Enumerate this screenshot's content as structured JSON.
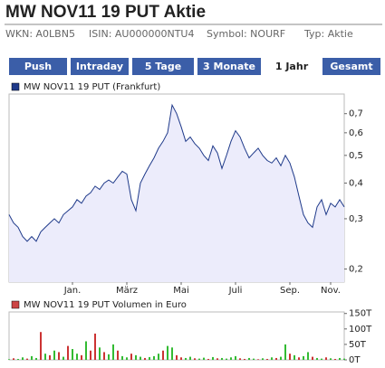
{
  "header": {
    "title": "MW NOV11 19 PUT Aktie",
    "info": [
      "WKN: A0LBN5",
      "ISIN: AU000000NTU4",
      "Symbol: NOURF",
      "Typ: Aktie"
    ]
  },
  "tabs": {
    "items": [
      "Push",
      "Intraday",
      "5 Tage",
      "3 Monate",
      "1 Jahr",
      "Gesamt"
    ],
    "selected": 4
  },
  "chart_data": [
    {
      "type": "line",
      "log_scale": true,
      "area_color": "#ececfb",
      "series": [
        {
          "name": "MW NOV11 19 PUT (Frankfurt)",
          "color": "#1f3a8a",
          "values": [
            0.31,
            0.29,
            0.28,
            0.26,
            0.25,
            0.26,
            0.25,
            0.27,
            0.28,
            0.29,
            0.3,
            0.29,
            0.31,
            0.32,
            0.33,
            0.35,
            0.34,
            0.36,
            0.37,
            0.39,
            0.38,
            0.4,
            0.41,
            0.4,
            0.42,
            0.44,
            0.43,
            0.35,
            0.32,
            0.4,
            0.43,
            0.46,
            0.49,
            0.53,
            0.56,
            0.6,
            0.75,
            0.7,
            0.63,
            0.56,
            0.58,
            0.55,
            0.53,
            0.5,
            0.48,
            0.54,
            0.51,
            0.45,
            0.5,
            0.56,
            0.61,
            0.58,
            0.53,
            0.49,
            0.51,
            0.53,
            0.5,
            0.48,
            0.47,
            0.49,
            0.46,
            0.5,
            0.47,
            0.42,
            0.36,
            0.31,
            0.29,
            0.28,
            0.33,
            0.35,
            0.31,
            0.34,
            0.33,
            0.35,
            0.33
          ]
        }
      ],
      "categories": [
        null,
        null,
        null,
        null,
        null,
        null,
        null,
        null,
        null,
        null,
        null,
        null,
        null,
        null,
        "Jan.",
        null,
        null,
        null,
        null,
        null,
        null,
        null,
        null,
        null,
        null,
        null,
        "März",
        null,
        null,
        null,
        null,
        null,
        null,
        null,
        null,
        null,
        null,
        null,
        "Mai",
        null,
        null,
        null,
        null,
        null,
        null,
        null,
        null,
        null,
        null,
        null,
        "Juli",
        null,
        null,
        null,
        null,
        null,
        null,
        null,
        null,
        null,
        null,
        null,
        "Sep.",
        null,
        null,
        null,
        null,
        null,
        null,
        null,
        null,
        "Nov.",
        null,
        null,
        null
      ],
      "ylim": [
        0.18,
        0.82
      ],
      "yticks": [
        {
          "value": 0.2,
          "label": "0,2"
        },
        {
          "value": 0.3,
          "label": "0,3"
        },
        {
          "value": 0.4,
          "label": "0,4"
        },
        {
          "value": 0.5,
          "label": "0,5"
        },
        {
          "value": 0.6,
          "label": "0,6"
        },
        {
          "value": 0.7,
          "label": "0,7"
        }
      ]
    },
    {
      "type": "bar",
      "series": [
        {
          "name": "MW NOV11 19 PUT Volumen in Euro",
          "color": "#cc4444",
          "values": [
            2000,
            5000,
            3000,
            8000,
            4000,
            12000,
            6000,
            90000,
            20000,
            15000,
            30000,
            25000,
            10000,
            45000,
            35000,
            20000,
            15000,
            60000,
            30000,
            85000,
            40000,
            25000,
            18000,
            50000,
            30000,
            12000,
            8000,
            20000,
            15000,
            10000,
            6000,
            9000,
            12000,
            20000,
            30000,
            45000,
            40000,
            15000,
            8000,
            6000,
            10000,
            5000,
            4000,
            7000,
            3000,
            9000,
            5000,
            6000,
            4000,
            8000,
            12000,
            5000,
            3000,
            6000,
            4000,
            2000,
            5000,
            3000,
            8000,
            6000,
            10000,
            50000,
            20000,
            15000,
            8000,
            12000,
            25000,
            10000,
            6000,
            4000,
            8000,
            5000,
            3000,
            6000,
            4000
          ],
          "bar_colors": [
            "#33bb33",
            "#cc3333",
            "#33bb33",
            "#33bb33",
            "#cc3333",
            "#33bb33",
            "#33bb33",
            "#cc3333",
            "#33bb33",
            "#cc3333",
            "#33bb33",
            "#cc3333",
            "#33bb33",
            "#cc3333",
            "#33bb33",
            "#33bb33",
            "#cc3333",
            "#33bb33",
            "#cc3333",
            "#cc3333",
            "#33bb33",
            "#cc3333",
            "#33bb33",
            "#33bb33",
            "#cc3333",
            "#33bb33",
            "#33bb33",
            "#cc3333",
            "#33bb33",
            "#33bb33",
            "#cc3333",
            "#33bb33",
            "#33bb33",
            "#33bb33",
            "#cc3333",
            "#33bb33",
            "#33bb33",
            "#cc3333",
            "#cc3333",
            "#33bb33",
            "#33bb33",
            "#cc3333",
            "#33bb33",
            "#33bb33",
            "#cc3333",
            "#33bb33",
            "#cc3333",
            "#33bb33",
            "#33bb33",
            "#33bb33",
            "#33bb33",
            "#cc3333",
            "#cc3333",
            "#33bb33",
            "#33bb33",
            "#cc3333",
            "#33bb33",
            "#cc3333",
            "#33bb33",
            "#cc3333",
            "#33bb33",
            "#33bb33",
            "#cc3333",
            "#33bb33",
            "#cc3333",
            "#33bb33",
            "#33bb33",
            "#cc3333",
            "#33bb33",
            "#33bb33",
            "#cc3333",
            "#33bb33",
            "#cc3333",
            "#33bb33",
            "#33bb33"
          ]
        }
      ],
      "ylim": [
        0,
        155000
      ],
      "yticks": [
        {
          "value": 0,
          "label": "0T"
        },
        {
          "value": 50000,
          "label": "50T"
        },
        {
          "value": 100000,
          "label": "100T"
        },
        {
          "value": 150000,
          "label": "150T"
        }
      ]
    }
  ]
}
